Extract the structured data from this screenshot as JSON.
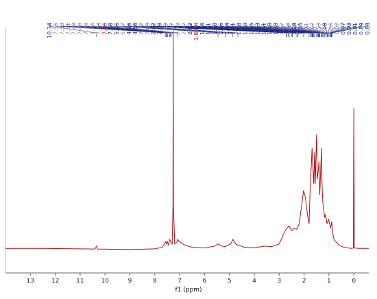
{
  "chart_data": {
    "type": "line",
    "x_label": "f1 (ppm)",
    "xlim": [
      14.0,
      -0.6
    ],
    "ylim": [
      -10,
      100
    ],
    "xticks": [
      13,
      12,
      11,
      10,
      9,
      8,
      7,
      6,
      5,
      4,
      3,
      2,
      1,
      0
    ],
    "series": [
      {
        "color": "#b01010",
        "x": [
          14.0,
          12.5,
          11,
          10.4,
          10.34,
          10.3,
          9,
          8,
          7.7,
          7.56,
          7.53,
          7.49,
          7.45,
          7.4,
          7.36,
          7.3,
          7.27,
          7.26,
          7.25,
          7.2,
          7.1,
          7.08,
          7.0,
          6.8,
          6.5,
          6.0,
          5.6,
          5.46,
          5.3,
          5.17,
          4.95,
          4.86,
          4.75,
          4.66,
          4.4,
          4.0,
          3.6,
          3.5,
          3.3,
          3.0,
          2.8,
          2.7,
          2.6,
          2.5,
          2.4,
          2.3,
          2.2,
          2.1,
          2.02,
          1.95,
          1.85,
          1.8,
          1.75,
          1.71,
          1.68,
          1.64,
          1.61,
          1.58,
          1.55,
          1.5,
          1.47,
          1.43,
          1.4,
          1.37,
          1.3,
          1.28,
          1.25,
          1.21,
          1.17,
          1.13,
          1.08,
          1.02,
          0.97,
          0.93,
          0.89,
          0.85,
          0.8,
          0.6,
          0.4,
          0.1,
          0.02,
          0.0,
          -0.02,
          -0.2,
          -0.6
        ],
        "values": [
          1.0,
          1.0,
          0.8,
          0.7,
          2,
          0.7,
          0.5,
          0.8,
          1.5,
          4,
          3,
          4,
          2.5,
          5,
          4,
          3,
          20,
          98.5,
          20,
          3,
          4,
          5,
          4,
          2.5,
          1.5,
          1.2,
          2,
          3,
          2,
          1.8,
          3,
          5,
          3,
          2.5,
          1.5,
          1.3,
          2,
          2,
          1.8,
          3,
          8,
          10,
          11,
          9,
          10,
          9.5,
          12,
          20,
          27,
          24,
          15,
          12,
          30,
          38,
          46,
          36,
          30,
          44,
          30,
          52,
          32,
          36,
          40,
          25,
          46,
          30,
          22,
          18,
          15,
          16,
          12,
          14,
          12,
          10,
          13,
          8,
          5,
          2.5,
          1.5,
          1,
          1.2,
          64,
          1.2,
          1,
          1
        ]
      }
    ],
    "peak_labels": [
      "10.34",
      "7.56",
      "7.53",
      "7.51",
      "7.49",
      "7.40",
      "7.39",
      "7.36",
      "7.34",
      "7.26",
      "7.08",
      "5.46",
      "5.17",
      "4.86",
      "4.66",
      "2.72",
      "2.69",
      "2.62",
      "2.60",
      "2.49",
      "2.47",
      "2.29",
      "2.27",
      "2.02",
      "1.80 H",
      "1.76",
      "1.71",
      "1.68",
      "1.66",
      "1.64",
      "1.61",
      "1.58",
      "1.50",
      "1.45",
      "1.43",
      "1.41",
      "1.40",
      "1.39",
      "1.37",
      "1.30",
      "1.28",
      "1.25",
      "1.21",
      "1.17",
      "1.13",
      "1.08",
      "1.06",
      "1.02",
      "0.97",
      "0.93",
      "0.91",
      "0.89",
      "0.88"
    ],
    "peak_label_colors": [
      "#1a237e",
      "#888",
      "#888",
      "#888",
      "#888",
      "#888",
      "#888",
      "#888",
      "#888",
      "#d01010",
      "#1a237e",
      "#1a237e",
      "#888",
      "#1a237e",
      "#1a237e",
      "#888",
      "#888",
      "#1a237e",
      "#1a237e",
      "#888",
      "#888",
      "#888",
      "#888",
      "#1a237e",
      "#d01010",
      "#1a237e",
      "#1a237e",
      "#1a237e",
      "#1a237e",
      "#1a237e",
      "#1a237e",
      "#1a237e",
      "#1a237e",
      "#1a237e",
      "#1a237e",
      "#1a237e",
      "#1a237e",
      "#1a237e",
      "#888",
      "#888",
      "#1a237e",
      "#1a237e",
      "#888",
      "#888",
      "#888",
      "#1a237e",
      "#888",
      "#888",
      "#1a237e",
      "#1a237e",
      "#1a237e",
      "#1a237e",
      "#1a237e"
    ]
  }
}
